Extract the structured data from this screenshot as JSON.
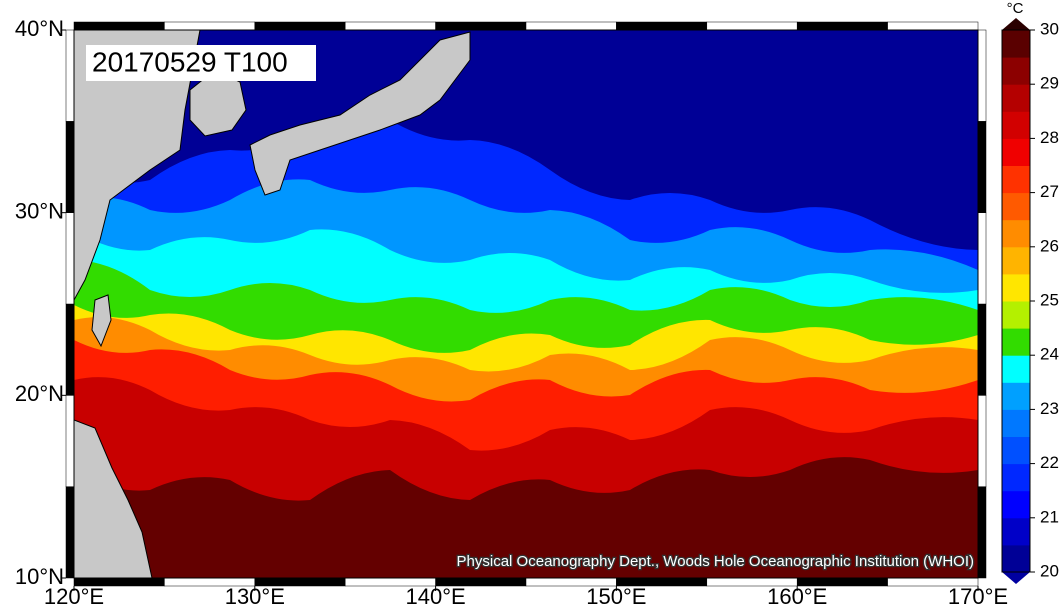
{
  "map": {
    "title": "20170529 T100",
    "unit": "°C",
    "credit": "Physical Oceanography Dept., Woods Hole Oceanographic Institution (WHOI)",
    "lon_ticks": [
      {
        "value": 120,
        "label": "120°E"
      },
      {
        "value": 130,
        "label": "130°E"
      },
      {
        "value": 140,
        "label": "140°E"
      },
      {
        "value": 150,
        "label": "150°E"
      },
      {
        "value": 160,
        "label": "160°E"
      },
      {
        "value": 170,
        "label": "170°E"
      }
    ],
    "lat_ticks": [
      {
        "value": 10,
        "label": "10°N"
      },
      {
        "value": 20,
        "label": "20°N"
      },
      {
        "value": 30,
        "label": "30°N"
      },
      {
        "value": 40,
        "label": "40°N"
      }
    ],
    "colorbar": {
      "ticks": [
        20,
        21,
        22,
        23,
        24,
        25,
        26,
        27,
        28,
        29,
        30
      ],
      "colors": [
        "#000096",
        "#0000c8",
        "#0000ff",
        "#0028ff",
        "#0050ff",
        "#0078ff",
        "#00a0ff",
        "#00ffff",
        "#32dc00",
        "#b4f000",
        "#ffe600",
        "#ffb400",
        "#ff8c00",
        "#ff5a00",
        "#ff3200",
        "#f00000",
        "#d20000",
        "#b40000",
        "#8c0000",
        "#5a0000"
      ],
      "under_color": "#0000a0",
      "over_color": "#2a0000"
    }
  }
}
